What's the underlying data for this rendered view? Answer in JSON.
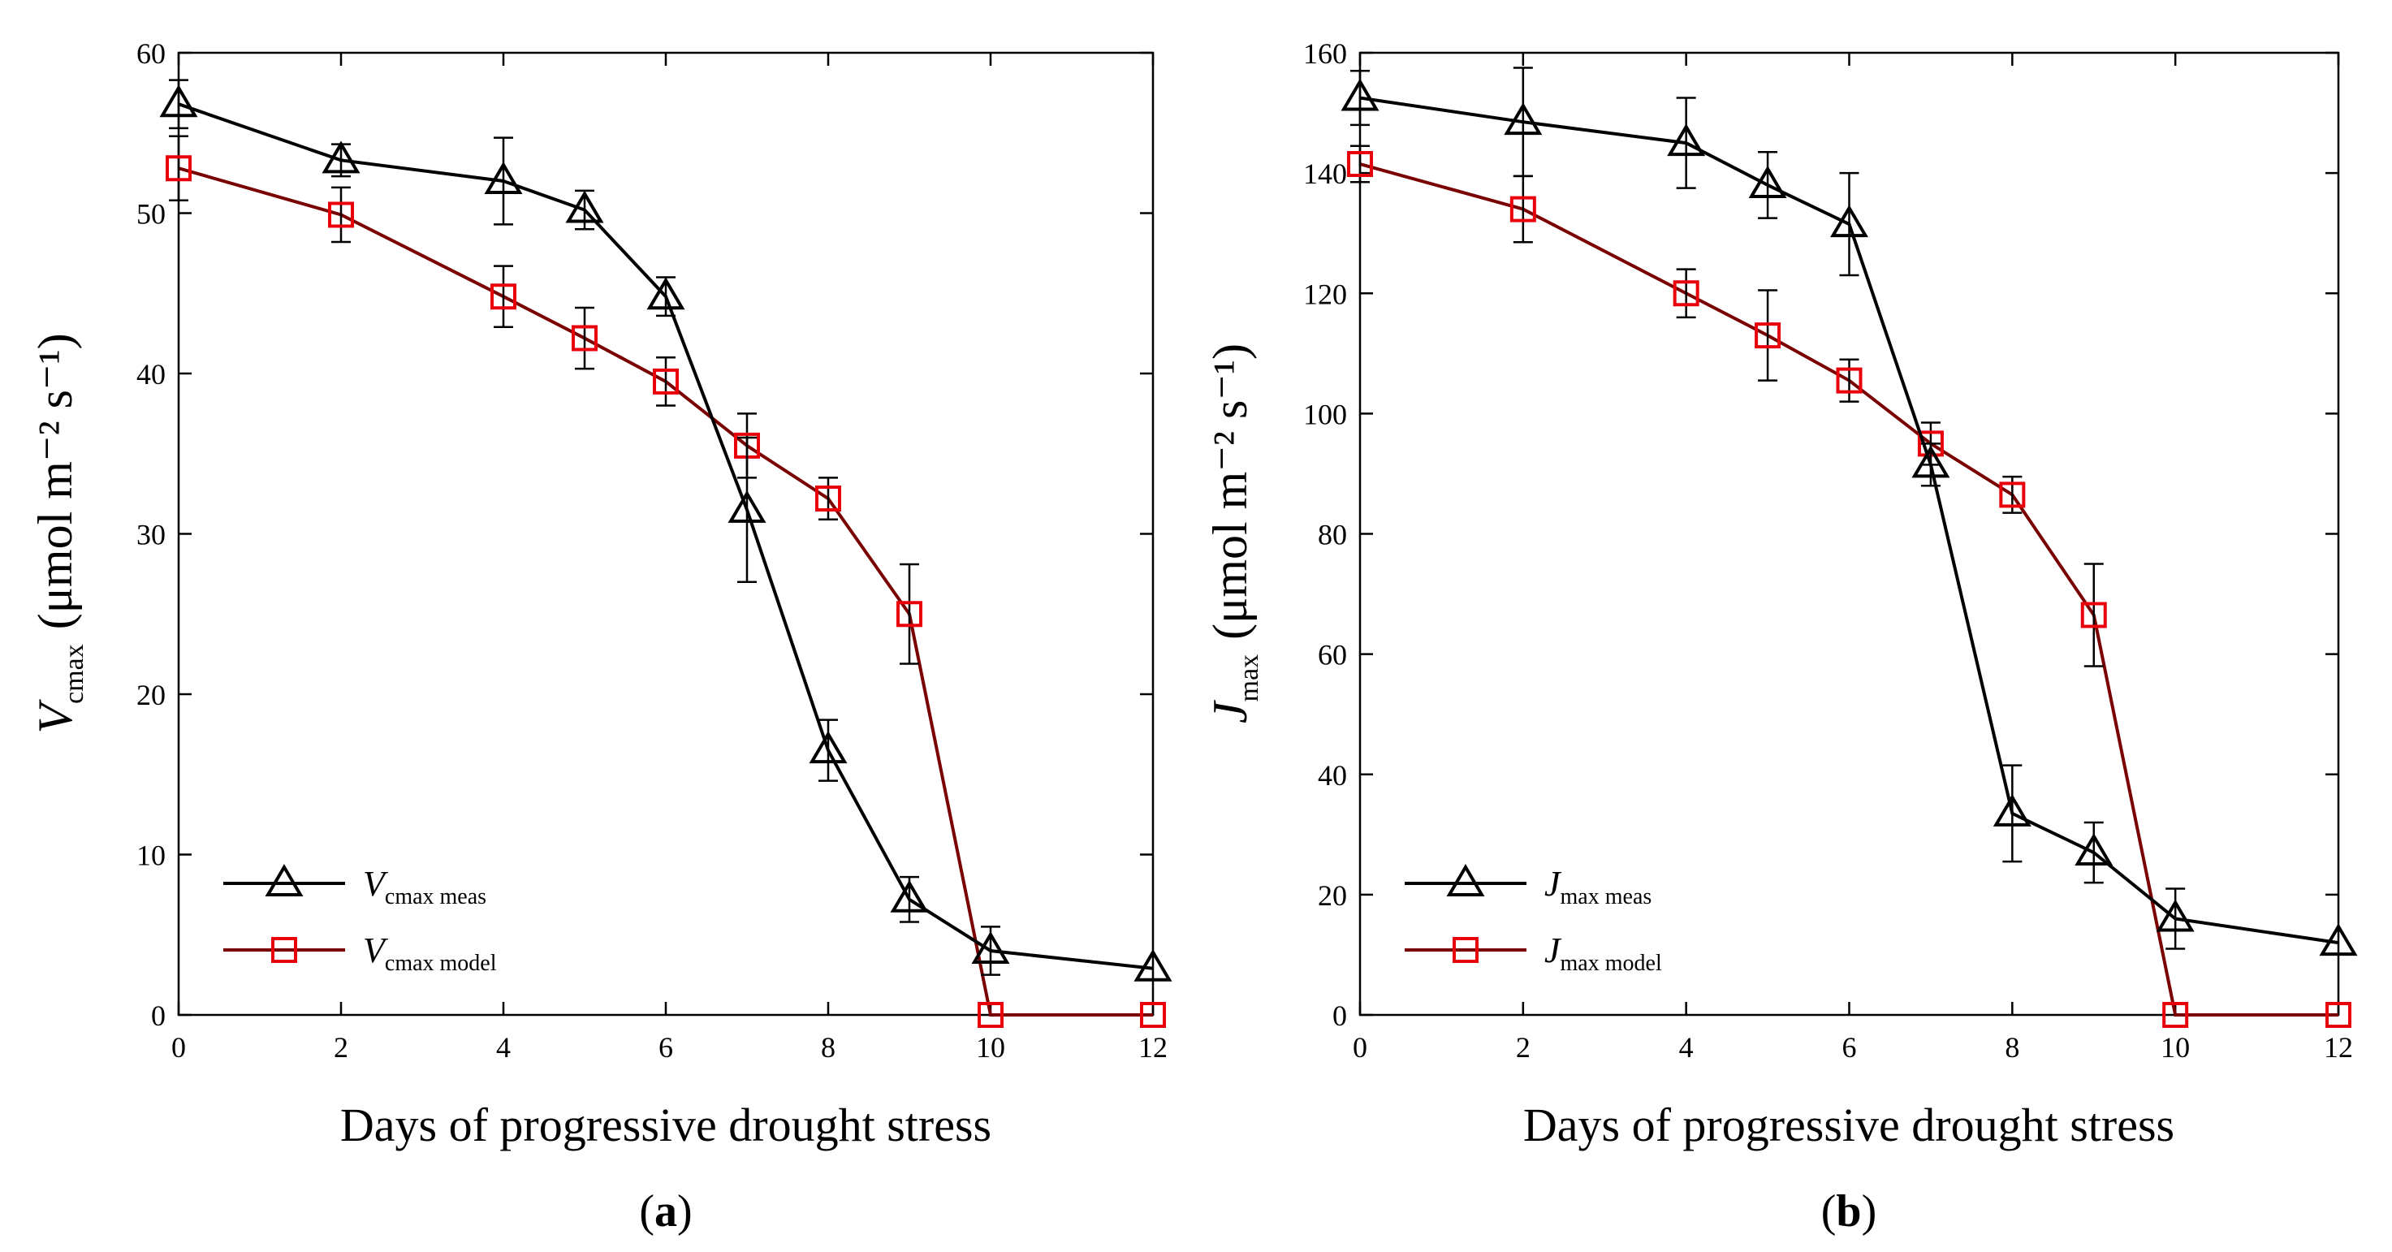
{
  "chart_data": [
    {
      "type": "line",
      "panel_label": "(a)",
      "panel_letter": "a",
      "xlabel": "Days of progressive drought stress",
      "ylabel": {
        "symbol": "V",
        "subscript": "cmax",
        "units": "(μmol m⁻² s⁻¹)"
      },
      "xlim": [
        0,
        12
      ],
      "ylim": [
        0,
        60
      ],
      "xticks": [
        0,
        2,
        4,
        6,
        8,
        10,
        12
      ],
      "yticks": [
        0,
        10,
        20,
        30,
        40,
        50,
        60
      ],
      "legend_position": "bottom-left",
      "series": [
        {
          "name": "Vcmax meas",
          "legend_symbol": "V",
          "legend_subscript": "cmax meas",
          "color": "#000000",
          "marker": "triangle",
          "x": [
            0,
            2,
            4,
            5,
            6,
            7,
            8,
            9,
            10,
            12
          ],
          "y": [
            56.8,
            53.3,
            52.0,
            50.2,
            44.8,
            31.5,
            16.5,
            7.2,
            4.0,
            2.9
          ],
          "yerr": [
            1.5,
            1.0,
            2.7,
            1.2,
            1.2,
            4.5,
            1.9,
            1.4,
            1.5,
            0
          ]
        },
        {
          "name": "Vcmax model",
          "legend_symbol": "V",
          "legend_subscript": "cmax model",
          "color": "#e8000b",
          "line_color": "#7a0000",
          "marker": "square",
          "x": [
            0,
            2,
            4,
            5,
            6,
            7,
            8,
            9,
            10,
            12
          ],
          "y": [
            52.8,
            49.9,
            44.8,
            42.2,
            39.5,
            35.5,
            32.2,
            25.0,
            0,
            0
          ],
          "yerr": [
            2.0,
            1.7,
            1.9,
            1.9,
            1.5,
            2.0,
            1.3,
            3.1,
            0,
            0
          ]
        }
      ]
    },
    {
      "type": "line",
      "panel_label": "(b)",
      "panel_letter": "b",
      "xlabel": "Days of progressive drought stress",
      "ylabel": {
        "symbol": "J",
        "subscript": "max",
        "units": "(μmol m⁻² s⁻¹)"
      },
      "xlim": [
        0,
        12
      ],
      "ylim": [
        0,
        160
      ],
      "xticks": [
        0,
        2,
        4,
        6,
        8,
        10,
        12
      ],
      "yticks": [
        0,
        20,
        40,
        60,
        80,
        100,
        120,
        140,
        160
      ],
      "legend_position": "bottom-left",
      "series": [
        {
          "name": "Jmax meas",
          "legend_symbol": "J",
          "legend_subscript": "max meas",
          "color": "#000000",
          "marker": "triangle",
          "x": [
            0,
            2,
            4,
            5,
            6,
            7,
            8,
            9,
            10,
            12
          ],
          "y": [
            152.5,
            148.5,
            145.0,
            138.0,
            131.5,
            91.5,
            33.5,
            27.0,
            16.0,
            12.0
          ],
          "yerr": [
            4.5,
            9.0,
            7.5,
            5.5,
            8.5,
            3.5,
            8.0,
            5.0,
            5.0,
            0
          ]
        },
        {
          "name": "Jmax model",
          "legend_symbol": "J",
          "legend_subscript": "max model",
          "color": "#e8000b",
          "line_color": "#7a0000",
          "marker": "square",
          "x": [
            0,
            2,
            4,
            5,
            6,
            7,
            8,
            9,
            10,
            12
          ],
          "y": [
            141.5,
            134.0,
            120.0,
            113.0,
            105.5,
            95.0,
            86.5,
            66.5,
            0,
            0
          ],
          "yerr": [
            3.0,
            5.5,
            4.0,
            7.5,
            3.5,
            3.5,
            3.0,
            8.5,
            0,
            0
          ]
        }
      ]
    }
  ]
}
